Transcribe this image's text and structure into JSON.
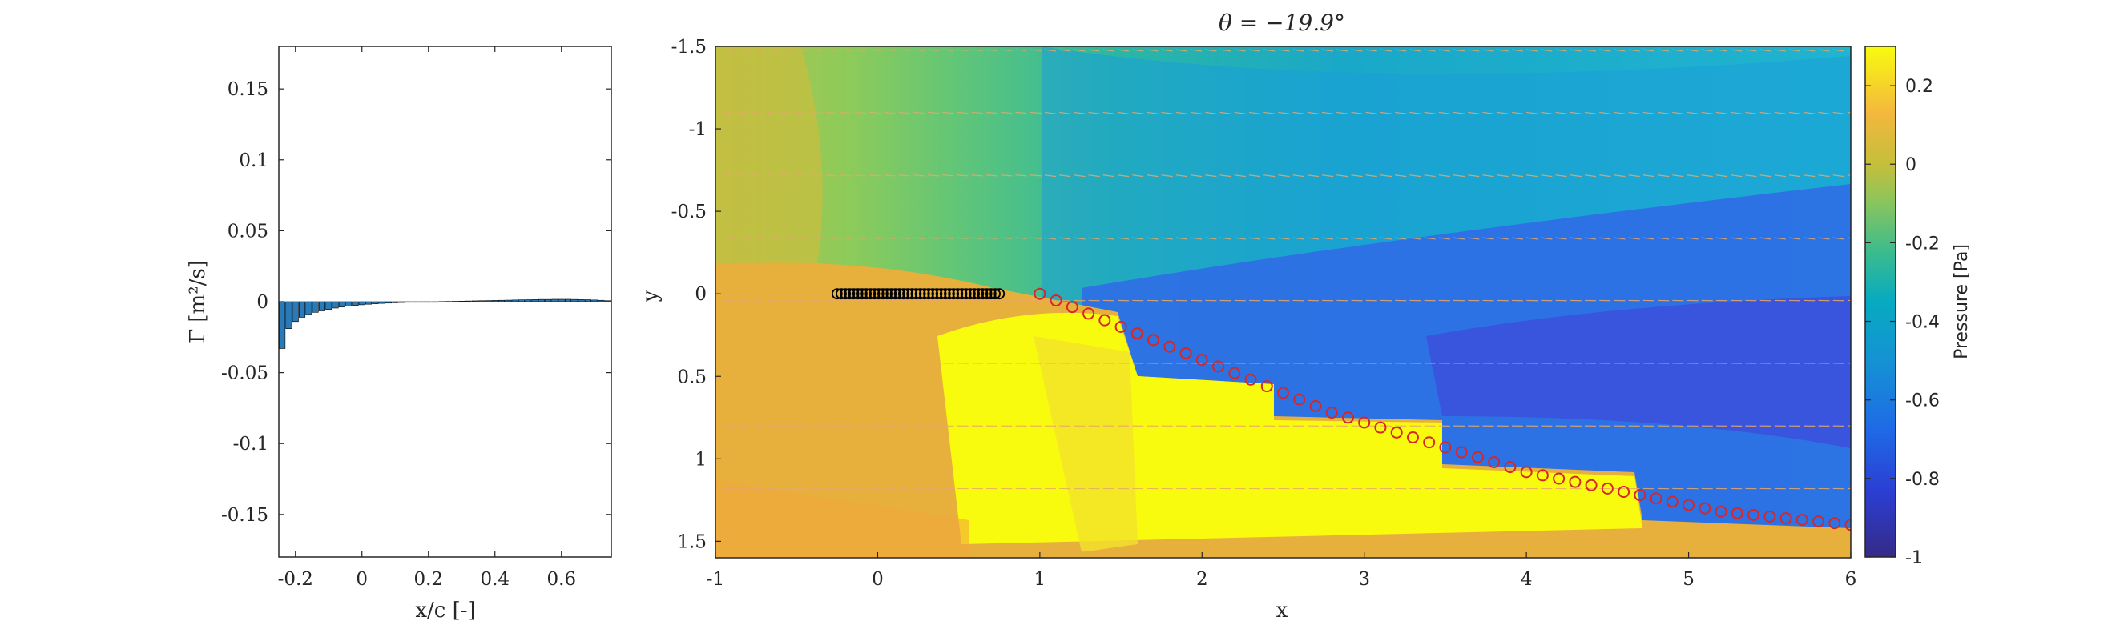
{
  "chart_data": [
    {
      "type": "bar",
      "xlabel": "x/c [-]",
      "ylabel": "Γ [m²/s]",
      "xlim": [
        -0.25,
        0.75
      ],
      "ylim": [
        -0.18,
        0.18
      ],
      "xticks": [
        "-0.2",
        "0",
        "0.2",
        "0.4",
        "0.6"
      ],
      "xtick_values": [
        -0.2,
        0,
        0.2,
        0.4,
        0.6
      ],
      "yticks": [
        "0.15",
        "0.1",
        "0.05",
        "0",
        "-0.05",
        "-0.1",
        "-0.15"
      ],
      "ytick_values": [
        0.15,
        0.1,
        0.05,
        0,
        -0.05,
        -0.1,
        -0.15
      ],
      "bar_color": "#2a7ab8",
      "x": [
        -0.24,
        -0.22,
        -0.2,
        -0.18,
        -0.16,
        -0.14,
        -0.12,
        -0.1,
        -0.08,
        -0.06,
        -0.04,
        -0.02,
        0.0,
        0.02,
        0.04,
        0.06,
        0.08,
        0.1,
        0.12,
        0.14,
        0.16,
        0.18,
        0.2,
        0.22,
        0.24,
        0.26,
        0.28,
        0.3,
        0.32,
        0.34,
        0.36,
        0.38,
        0.4,
        0.42,
        0.44,
        0.46,
        0.48,
        0.5,
        0.52,
        0.54,
        0.56,
        0.58,
        0.6,
        0.62,
        0.64,
        0.66,
        0.68,
        0.7,
        0.72,
        0.74
      ],
      "values": [
        -0.033,
        -0.019,
        -0.014,
        -0.011,
        -0.009,
        -0.0075,
        -0.0065,
        -0.0055,
        -0.0045,
        -0.0038,
        -0.0032,
        -0.0027,
        -0.0022,
        -0.0018,
        -0.0015,
        -0.0012,
        -0.001,
        -0.0008,
        -0.0006,
        -0.0004,
        -0.0003,
        -0.0002,
        -0.0001,
        0.0,
        0.0001,
        0.0002,
        0.0003,
        0.0004,
        0.0005,
        0.0006,
        0.0007,
        0.0008,
        0.0009,
        0.001,
        0.0011,
        0.0012,
        0.0013,
        0.0014,
        0.0015,
        0.0016,
        0.0016,
        0.0017,
        0.0017,
        0.0017,
        0.0016,
        0.0015,
        0.0014,
        0.0012,
        0.001,
        0.0007
      ]
    },
    {
      "type": "heatmap",
      "title": "θ = −19.9°",
      "xlabel": "x",
      "ylabel": "y",
      "xlim": [
        -1,
        6
      ],
      "ylim": [
        1.6,
        -1.5
      ],
      "xticks": [
        "-1",
        "0",
        "1",
        "2",
        "3",
        "4",
        "5",
        "6"
      ],
      "xtick_values": [
        -1,
        0,
        1,
        2,
        3,
        4,
        5,
        6
      ],
      "yticks": [
        "-1.5",
        "-1",
        "-0.5",
        "0",
        "0.5",
        "1",
        "1.5"
      ],
      "ytick_values": [
        -1.5,
        -1,
        -0.5,
        0,
        0.5,
        1,
        1.5
      ],
      "colorbar": {
        "label": "Pressure [Pa]",
        "range": [
          -1,
          0.3
        ],
        "ticks": [
          "0.2",
          "0",
          "-0.2",
          "-0.4",
          "-0.6",
          "-0.8",
          "-1"
        ],
        "tick_values": [
          0.2,
          0,
          -0.2,
          -0.4,
          -0.6,
          -0.8,
          -1
        ],
        "colormap": "parula"
      },
      "wake_points": {
        "marker_color": "#d62728",
        "x": [
          1.0,
          1.1,
          1.2,
          1.3,
          1.4,
          1.5,
          1.6,
          1.7,
          1.8,
          1.9,
          2.0,
          2.1,
          2.2,
          2.3,
          2.4,
          2.5,
          2.6,
          2.7,
          2.8,
          2.9,
          3.0,
          3.1,
          3.2,
          3.3,
          3.4,
          3.5,
          3.6,
          3.7,
          3.8,
          3.9,
          4.0,
          4.1,
          4.2,
          4.3,
          4.4,
          4.5,
          4.6,
          4.7,
          4.8,
          4.9,
          5.0,
          5.1,
          5.2,
          5.3,
          5.4,
          5.5,
          5.6,
          5.7,
          5.8,
          5.9,
          6.0
        ],
        "y": [
          0.0,
          0.04,
          0.08,
          0.12,
          0.16,
          0.2,
          0.24,
          0.28,
          0.32,
          0.36,
          0.4,
          0.44,
          0.48,
          0.52,
          0.56,
          0.6,
          0.64,
          0.68,
          0.72,
          0.75,
          0.78,
          0.81,
          0.84,
          0.87,
          0.9,
          0.93,
          0.96,
          0.99,
          1.02,
          1.05,
          1.08,
          1.1,
          1.12,
          1.14,
          1.16,
          1.18,
          1.2,
          1.22,
          1.24,
          1.26,
          1.28,
          1.3,
          1.32,
          1.33,
          1.34,
          1.35,
          1.36,
          1.37,
          1.38,
          1.39,
          1.4
        ]
      },
      "plate_points": {
        "marker_color": "#000000",
        "x_start": -0.25,
        "x_end": 0.75,
        "y": 0.0,
        "count": 40
      }
    }
  ]
}
